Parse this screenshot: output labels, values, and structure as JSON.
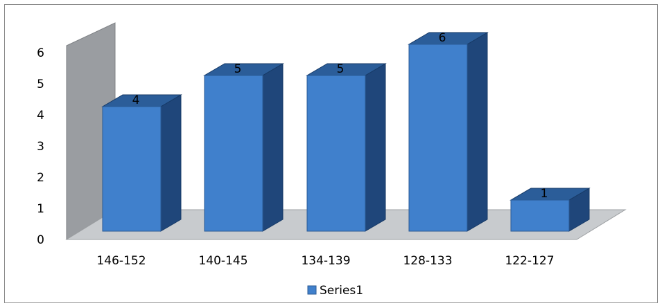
{
  "chart_data": {
    "type": "bar",
    "categories": [
      "146-152",
      "140-145",
      "134-139",
      "128-133",
      "122-127"
    ],
    "series": [
      {
        "name": "Series1",
        "values": [
          4,
          5,
          5,
          6,
          1
        ]
      }
    ],
    "ylim": [
      0,
      6
    ],
    "yticks": [
      0,
      1,
      2,
      3,
      4,
      5,
      6
    ],
    "title": "",
    "xlabel": "",
    "ylabel": "",
    "legend": "bottom",
    "grid": false,
    "style": "3d-column",
    "colors": {
      "bar_front": "#4080cc",
      "bar_side": "#1f467a",
      "bar_top": "#2b5d99",
      "wall": "#9a9da1",
      "floor": "#c8cbce"
    }
  }
}
